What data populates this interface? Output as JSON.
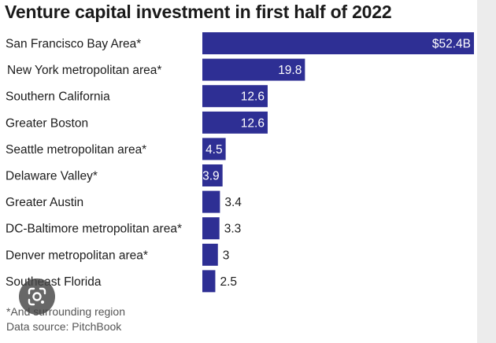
{
  "chart_data": {
    "type": "bar",
    "orientation": "horizontal",
    "title": "Venture capital investment in first half of 2022",
    "categories": [
      "San Francisco Bay Area*",
      "New York metropolitan area*",
      "Southern California",
      "Greater Boston",
      "Seattle metropolitan area*",
      "Delaware Valley*",
      "Greater Austin",
      "DC-Baltimore metropolitan area*",
      "Denver metropolitan area*",
      "Southeast Florida"
    ],
    "values": [
      52.4,
      19.8,
      12.6,
      12.6,
      4.5,
      3.9,
      3.4,
      3.3,
      3,
      2.5
    ],
    "value_labels": [
      "$52.4B",
      "19.8",
      "12.6",
      "12.6",
      "4.5",
      "3.9",
      "3.4",
      "3.3",
      "3",
      "2.5"
    ],
    "xlim": [
      0,
      52.4
    ],
    "bar_color": "#2e2f94",
    "xlabel": "",
    "ylabel": ""
  },
  "footnotes": {
    "note": "*And surrounding region",
    "source": "Data source: PitchBook"
  },
  "icons": {
    "lens": "google-lens-icon"
  }
}
